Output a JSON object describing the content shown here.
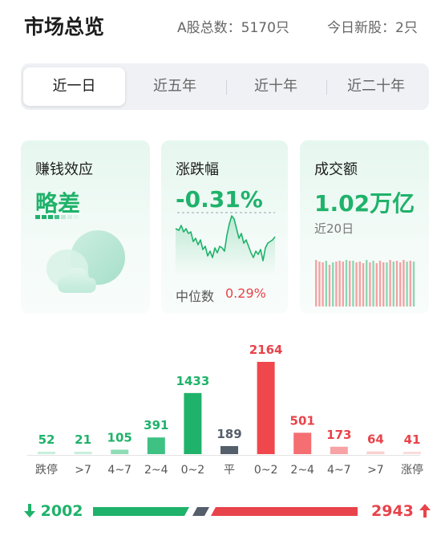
{
  "header": {
    "title": "市场总览",
    "total_stocks": "A股总数：5170只",
    "new_stocks": "今日新股：2只"
  },
  "tabs": [
    {
      "label": "近一日",
      "active": true
    },
    {
      "label": "近五年",
      "active": false
    },
    {
      "label": "近十年",
      "active": false
    },
    {
      "label": "近二十年",
      "active": false
    }
  ],
  "cards": {
    "sentiment": {
      "label": "赚钱效应",
      "value": "略差",
      "icon": "cloud-icon"
    },
    "change": {
      "label": "涨跌幅",
      "value": "-0.31%",
      "median_label": "中位数",
      "median_value": "0.29%"
    },
    "turnover": {
      "label": "成交额",
      "value": "1.02万亿",
      "sub": "近20日"
    }
  },
  "colors": {
    "up": "#e8434a",
    "down": "#1fb26a",
    "flat": "#555e6b"
  },
  "chart_data": {
    "type": "bar",
    "categories": [
      "跌停",
      ">7",
      "4~7",
      "2~4",
      "0~2",
      "平",
      "0~2",
      "2~4",
      "4~7",
      ">7",
      "涨停"
    ],
    "values": [
      52,
      21,
      105,
      391,
      1433,
      189,
      2164,
      501,
      173,
      64,
      41
    ],
    "value_labels": [
      "52",
      "21",
      "105",
      "391",
      "1433",
      "189",
      "2164",
      "501",
      "173",
      "64",
      "41"
    ],
    "bar_colors": [
      "#c8efdc",
      "#c8efdc",
      "#8fdcb6",
      "#3fc184",
      "#1fb26a",
      "#555e6b",
      "#f0474d",
      "#f46e72",
      "#f7a2a4",
      "#fbcfd0",
      "#fbdcdc"
    ],
    "label_colors": [
      "#1fb26a",
      "#1fb26a",
      "#1fb26a",
      "#1fb26a",
      "#1fb26a",
      "#555e6b",
      "#e8434a",
      "#e8434a",
      "#e8434a",
      "#e8434a",
      "#e8434a"
    ],
    "ylim": [
      0,
      2164
    ]
  },
  "summary": {
    "down_count": "2002",
    "up_count": "2943"
  }
}
